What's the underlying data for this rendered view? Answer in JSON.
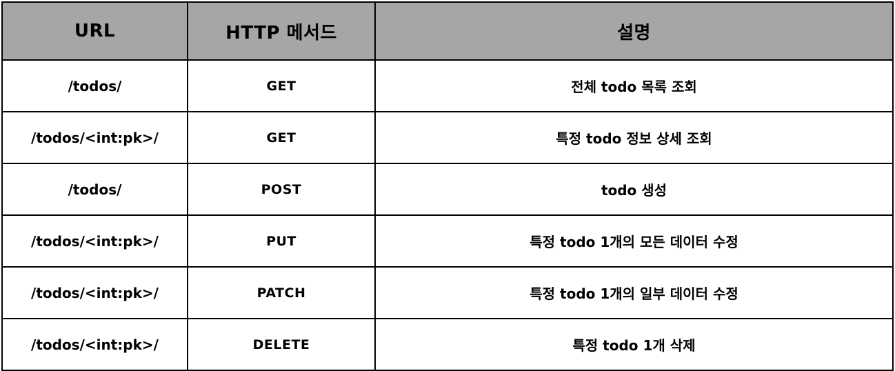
{
  "table": {
    "headers": {
      "url": "URL",
      "method": "HTTP 메서드",
      "description": "설명"
    },
    "rows": [
      {
        "url": "/todos/",
        "method": "GET",
        "description": "전체 todo 목록 조회"
      },
      {
        "url": "/todos/<int:pk>/",
        "method": "GET",
        "description": "특정 todo 정보 상세 조회"
      },
      {
        "url": "/todos/",
        "method": "POST",
        "description": "todo 생성"
      },
      {
        "url": "/todos/<int:pk>/",
        "method": "PUT",
        "description": "특정 todo 1개의 모든 데이터 수정"
      },
      {
        "url": "/todos/<int:pk>/",
        "method": "PATCH",
        "description": "특정 todo 1개의 일부 데이터 수정"
      },
      {
        "url": "/todos/<int:pk>/",
        "method": "DELETE",
        "description": "특정 todo 1개 삭제"
      }
    ]
  },
  "colors": {
    "header_bg": "#a8a5a6",
    "border": "#000000",
    "text": "#000000"
  }
}
